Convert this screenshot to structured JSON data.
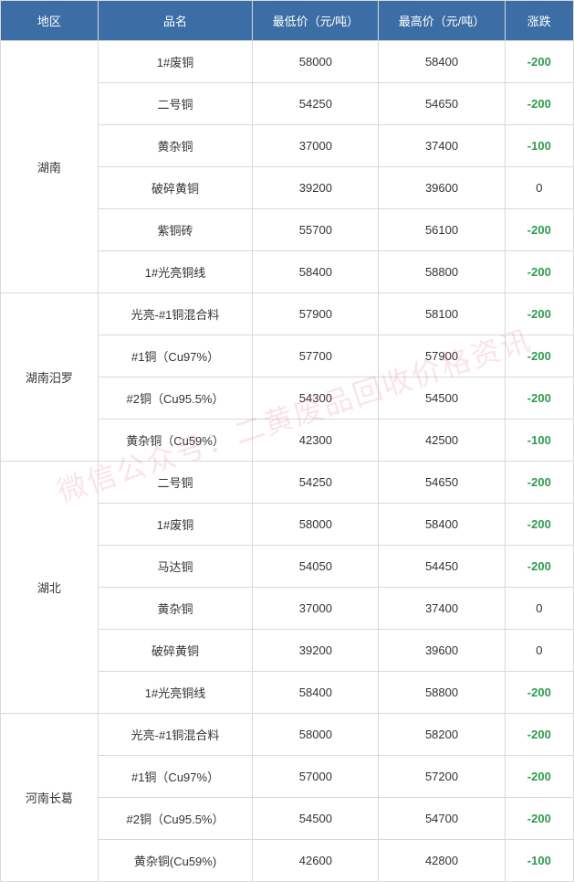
{
  "headers": [
    "地区",
    "品名",
    "最低价（元/吨）",
    "最高价（元/吨）",
    "涨跌"
  ],
  "col_widths": [
    "17%",
    "27%",
    "22%",
    "22%",
    "12%"
  ],
  "colors": {
    "header_bg": "#3a6ea5",
    "header_fg": "#ffffff",
    "border": "#d9d9d9",
    "neg": "#2e9b4f",
    "text": "#333333"
  },
  "watermark": "微信公众号：二黄废品回收价格资讯",
  "regions": [
    {
      "name": "湖南",
      "rows": [
        {
          "p": "1#废铜",
          "lo": "58000",
          "hi": "58400",
          "d": "-200"
        },
        {
          "p": "二号铜",
          "lo": "54250",
          "hi": "54650",
          "d": "-200"
        },
        {
          "p": "黄杂铜",
          "lo": "37000",
          "hi": "37400",
          "d": "-100"
        },
        {
          "p": "破碎黄铜",
          "lo": "39200",
          "hi": "39600",
          "d": "0"
        },
        {
          "p": "紫铜砖",
          "lo": "55700",
          "hi": "56100",
          "d": "-200"
        },
        {
          "p": "1#光亮铜线",
          "lo": "58400",
          "hi": "58800",
          "d": "-200"
        }
      ]
    },
    {
      "name": "湖南汨罗",
      "rows": [
        {
          "p": "光亮-#1铜混合料",
          "lo": "57900",
          "hi": "58100",
          "d": "-200"
        },
        {
          "p": "#1铜（Cu97%）",
          "lo": "57700",
          "hi": "57900",
          "d": "-200"
        },
        {
          "p": "#2铜（Cu95.5%）",
          "lo": "54300",
          "hi": "54500",
          "d": "-200"
        },
        {
          "p": "黄杂铜（Cu59%）",
          "lo": "42300",
          "hi": "42500",
          "d": "-100"
        }
      ]
    },
    {
      "name": "湖北",
      "rows": [
        {
          "p": "二号铜",
          "lo": "54250",
          "hi": "54650",
          "d": "-200"
        },
        {
          "p": "1#废铜",
          "lo": "58000",
          "hi": "58400",
          "d": "-200"
        },
        {
          "p": "马达铜",
          "lo": "54050",
          "hi": "54450",
          "d": "-200"
        },
        {
          "p": "黄杂铜",
          "lo": "37000",
          "hi": "37400",
          "d": "0"
        },
        {
          "p": "破碎黄铜",
          "lo": "39200",
          "hi": "39600",
          "d": "0"
        },
        {
          "p": "1#光亮铜线",
          "lo": "58400",
          "hi": "58800",
          "d": "-200"
        }
      ]
    },
    {
      "name": "河南长葛",
      "rows": [
        {
          "p": "光亮-#1铜混合料",
          "lo": "58000",
          "hi": "58200",
          "d": "-200"
        },
        {
          "p": "#1铜（Cu97%）",
          "lo": "57000",
          "hi": "57200",
          "d": "-200"
        },
        {
          "p": "#2铜（Cu95.5%）",
          "lo": "54500",
          "hi": "54700",
          "d": "-200"
        },
        {
          "p": "黄杂铜(Cu59%)",
          "lo": "42600",
          "hi": "42800",
          "d": "-100"
        }
      ]
    }
  ]
}
